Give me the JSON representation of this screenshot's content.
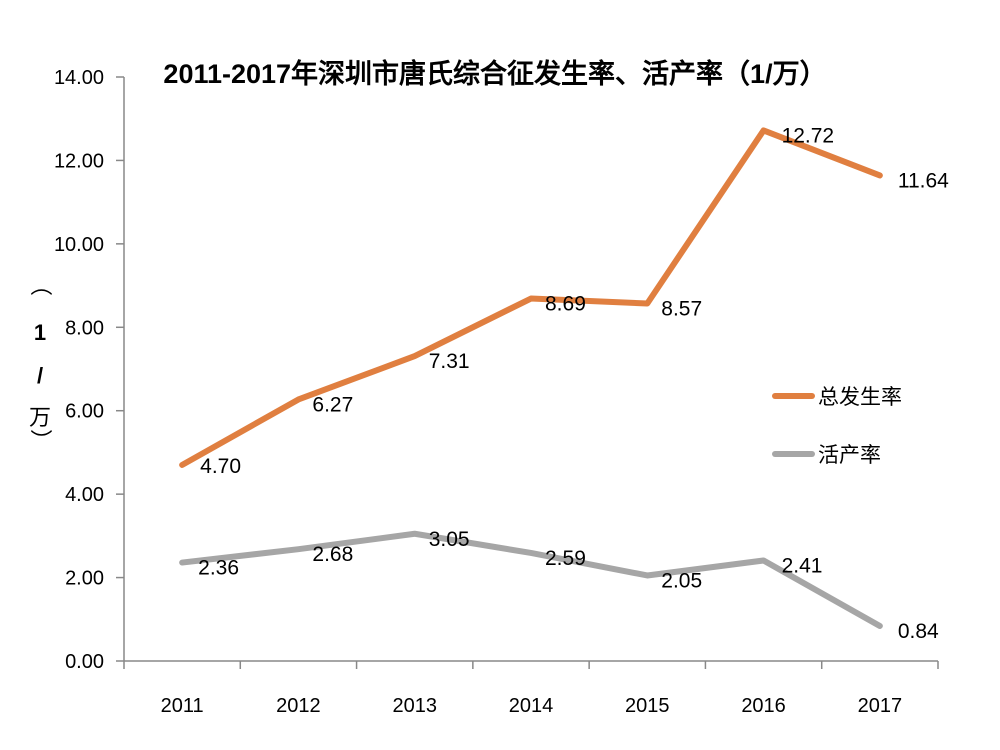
{
  "chart_data": {
    "type": "line",
    "title": "2011-2017年深圳市唐氏综合征发生率、活产率（1/万）",
    "ylabel": "（1/万）",
    "ylabel_chars": [
      "（",
      "1",
      "/",
      "万",
      "）"
    ],
    "xlabel": "",
    "categories": [
      "2011",
      "2012",
      "2013",
      "2014",
      "2015",
      "2016",
      "2017"
    ],
    "ylim": [
      0,
      14
    ],
    "yticks": [
      "0.00",
      "2.00",
      "4.00",
      "6.00",
      "8.00",
      "10.00",
      "12.00",
      "14.00"
    ],
    "grid": false,
    "legend_position": "right",
    "series": [
      {
        "name": "总发生率",
        "color": "#E07F40",
        "values": [
          4.7,
          6.27,
          7.31,
          8.69,
          8.57,
          12.72,
          11.64
        ],
        "labels": [
          "4.70",
          "6.27",
          "7.31",
          "8.69",
          "8.57",
          "12.72",
          "11.64"
        ]
      },
      {
        "name": "活产率",
        "color": "#A6A6A6",
        "values": [
          2.36,
          2.68,
          3.05,
          2.59,
          2.05,
          2.41,
          0.84
        ],
        "labels": [
          "2.36",
          "2.68",
          "3.05",
          "2.59",
          "2.05",
          "2.41",
          "0.84"
        ]
      }
    ]
  }
}
